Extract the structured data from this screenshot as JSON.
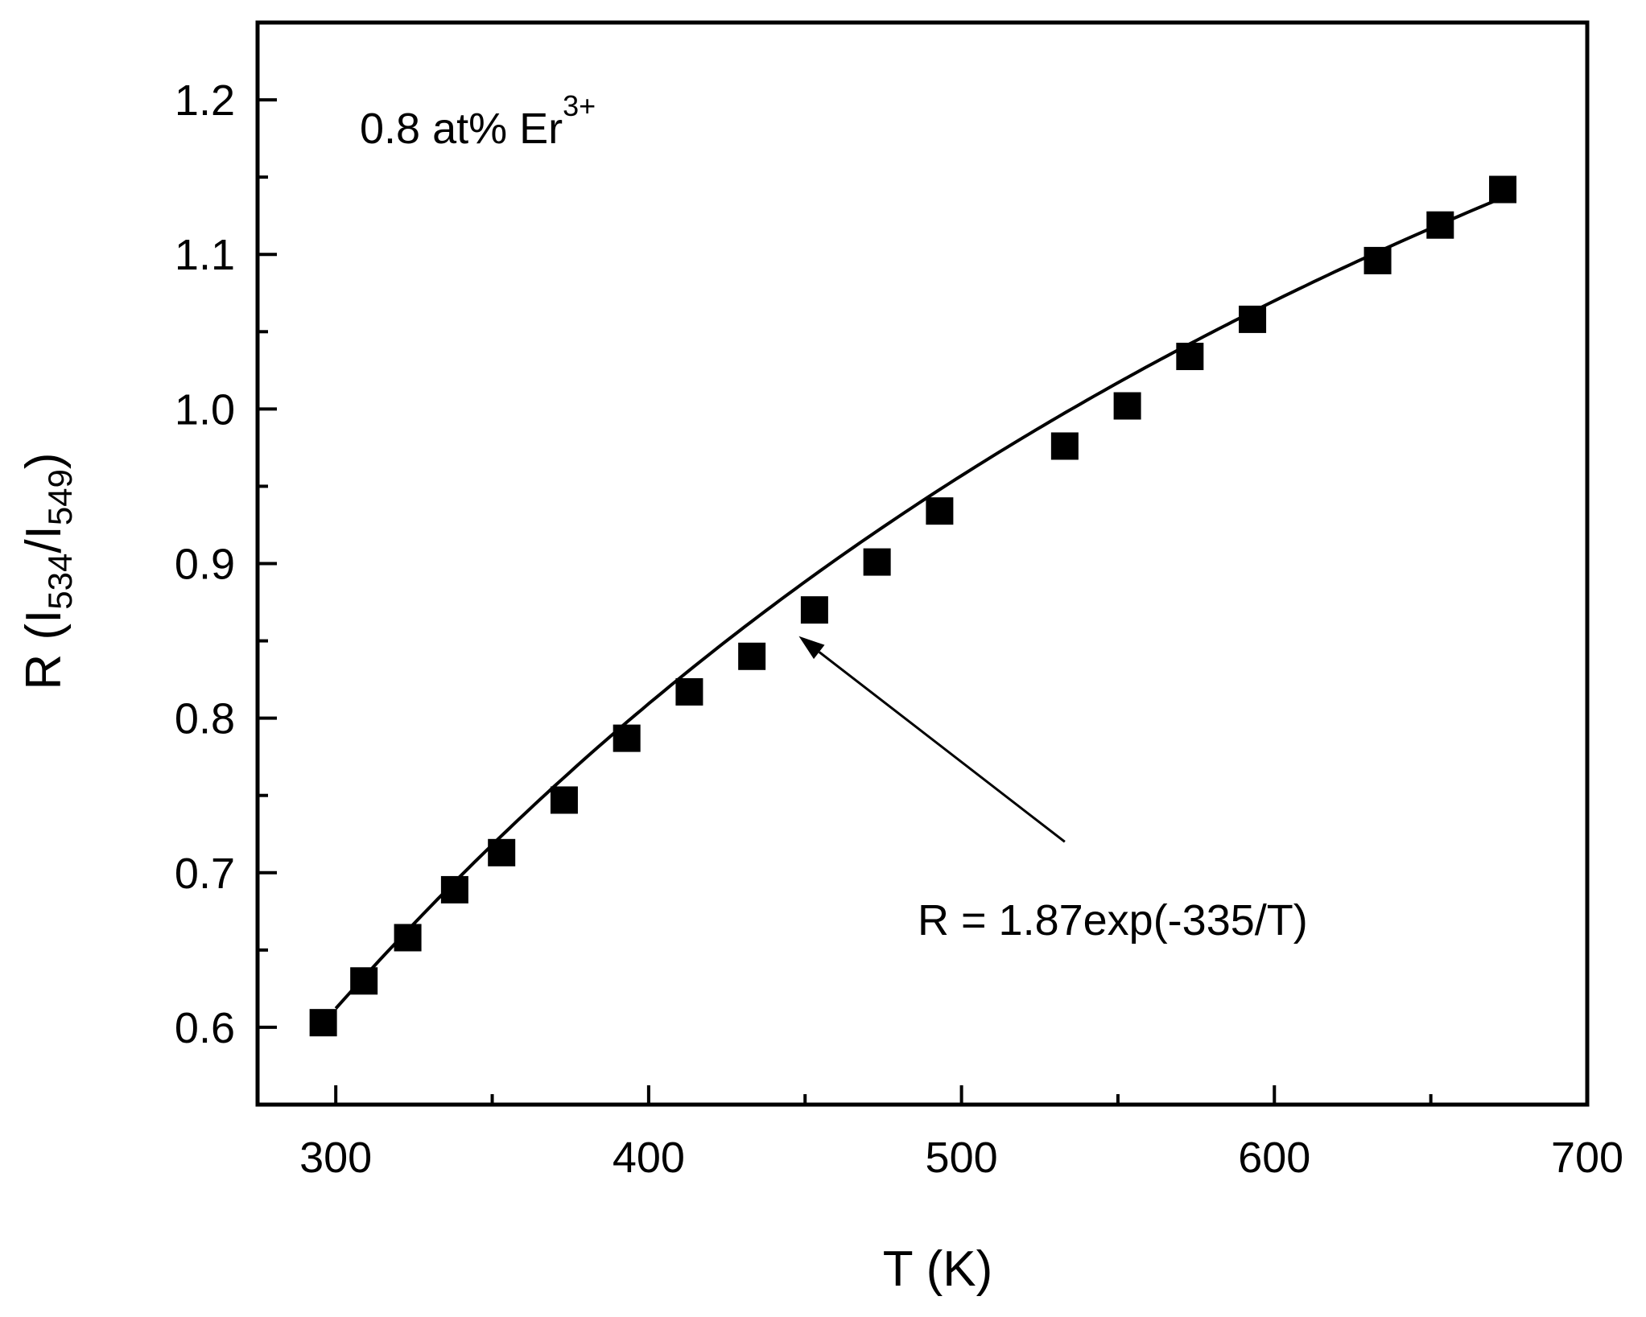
{
  "chart_data": {
    "type": "scatter",
    "xlabel": "T (K)",
    "ylabel": {
      "prefix": "R (I",
      "sub1": "534",
      "mid": "/I",
      "sub2": "549",
      "suffix": ")"
    },
    "xlim": [
      275,
      700
    ],
    "ylim": [
      0.55,
      1.25
    ],
    "xticks": [
      300,
      400,
      500,
      600,
      700
    ],
    "yticks": [
      0.6,
      0.7,
      0.8,
      0.9,
      1.0,
      1.1,
      1.2
    ],
    "xtick_labels": [
      "300",
      "400",
      "500",
      "600",
      "700"
    ],
    "ytick_labels": [
      "0.6",
      "0.7",
      "0.8",
      "0.9",
      "1.0",
      "1.1",
      "1.2"
    ],
    "x_minor_ticks": [
      350,
      450,
      550,
      650
    ],
    "y_minor_ticks": [
      0.65,
      0.75,
      0.85,
      0.95,
      1.05,
      1.15
    ],
    "grid": false,
    "legend": "none",
    "series": [
      {
        "marker": "square",
        "color": "#000000",
        "points": [
          [
            296,
            0.603
          ],
          [
            309,
            0.63
          ],
          [
            323,
            0.658
          ],
          [
            338,
            0.689
          ],
          [
            353,
            0.713
          ],
          [
            373,
            0.747
          ],
          [
            393,
            0.787
          ],
          [
            413,
            0.817
          ],
          [
            433,
            0.84
          ],
          [
            453,
            0.87
          ],
          [
            473,
            0.901
          ],
          [
            493,
            0.934
          ],
          [
            533,
            0.976
          ],
          [
            553,
            1.002
          ],
          [
            573,
            1.034
          ],
          [
            593,
            1.058
          ],
          [
            633,
            1.096
          ],
          [
            653,
            1.119
          ],
          [
            673,
            1.142
          ]
        ]
      }
    ],
    "fit": {
      "a": 1.87,
      "b": -335,
      "x_range": [
        300,
        673
      ],
      "color": "#000000",
      "label": "R = 1.87exp(-335/T)"
    },
    "sample_label": {
      "main": "0.8 at% Er",
      "sup": "3+"
    },
    "arrow": {
      "from": [
        533,
        0.72
      ],
      "to": [
        448,
        0.853
      ]
    }
  }
}
